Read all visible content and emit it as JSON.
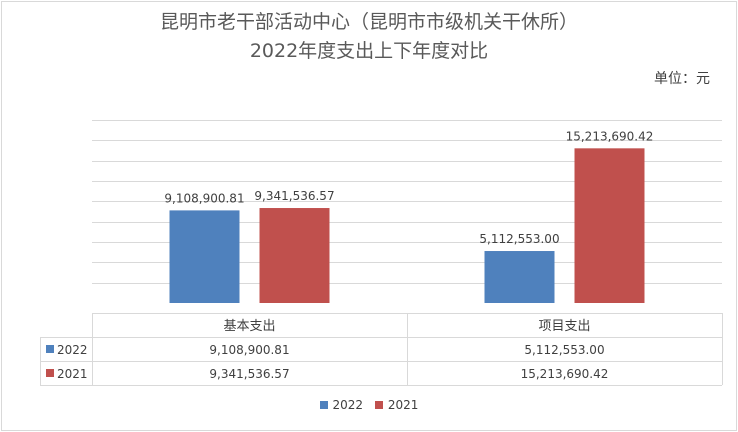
{
  "title_line1": "昆明市老干部活动中心（昆明市市级机关干休所）",
  "title_line2": "2022年度支出上下年度对比",
  "unit_label": "单位：元",
  "colors": {
    "series_2022": "#4f81bd",
    "series_2021": "#c0504d",
    "grid": "#d9d9d9"
  },
  "chart_data": {
    "type": "bar",
    "categories": [
      "基本支出",
      "项目支出"
    ],
    "series": [
      {
        "name": "2022",
        "values": [
          9108900.81,
          5112553.0
        ],
        "labels": [
          "9,108,900.81",
          "5,112,553.00"
        ]
      },
      {
        "name": "2021",
        "values": [
          9341536.57,
          15213690.42
        ],
        "labels": [
          "9,341,536.57",
          "15,213,690.42"
        ]
      }
    ],
    "ylim": [
      0,
      18000000
    ],
    "grid": true,
    "legend": "bottom",
    "data_table": true
  }
}
